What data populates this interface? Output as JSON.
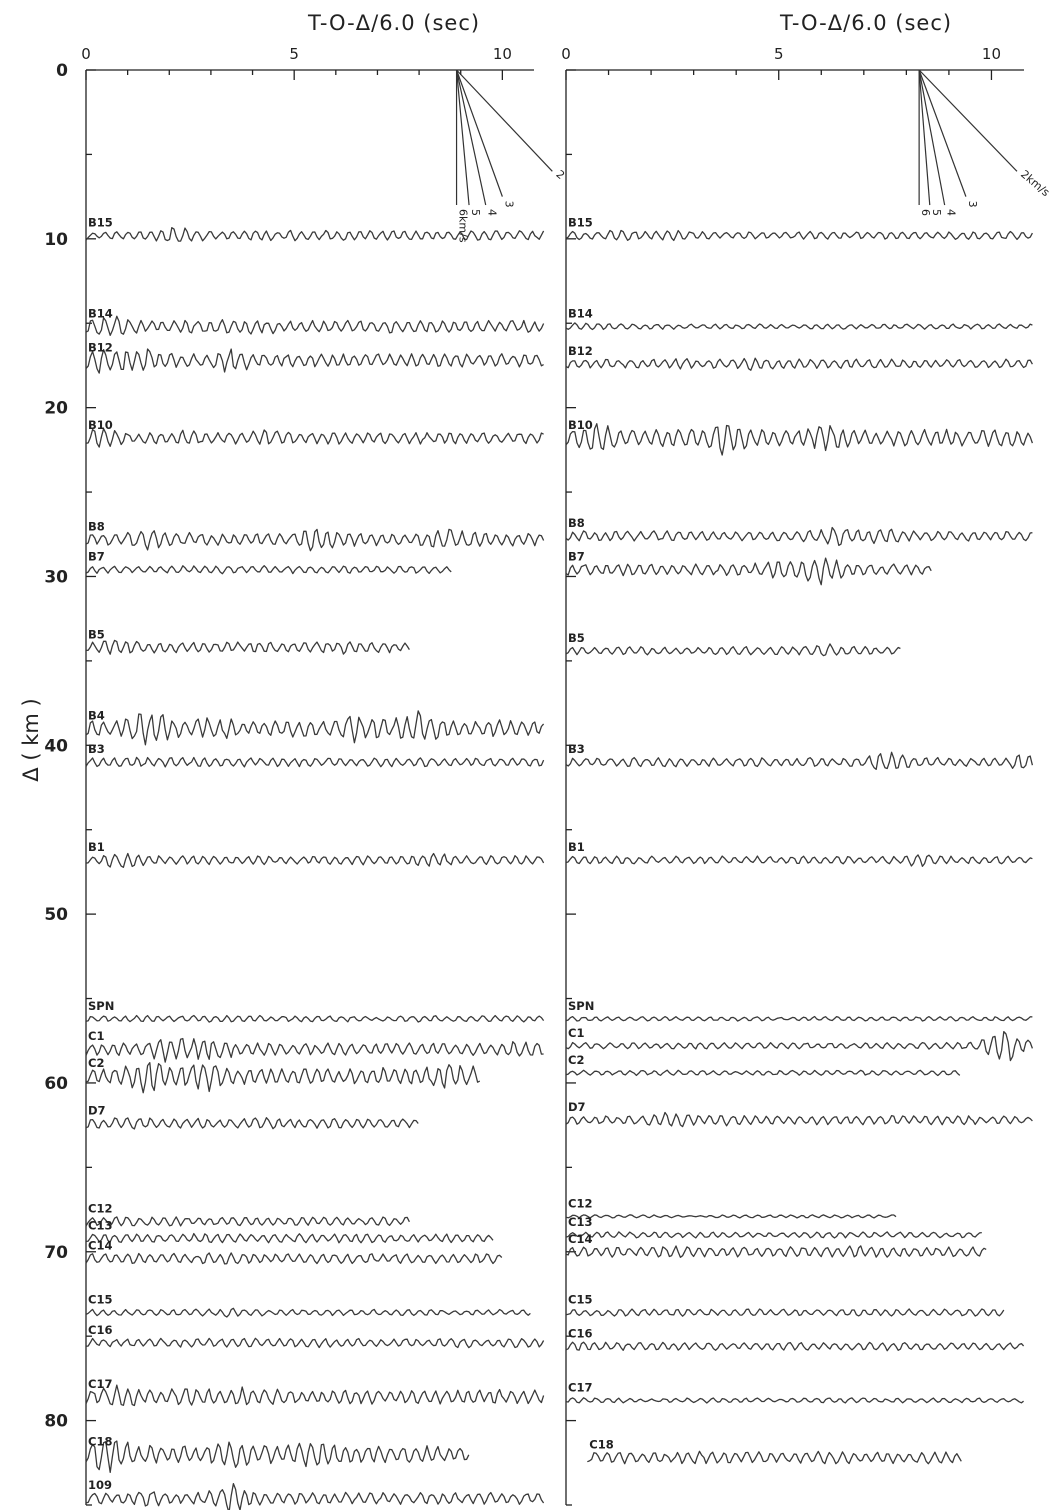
{
  "chart_data": [
    {
      "type": "line",
      "panel": "left",
      "title": "T-O-Δ/6.0 (sec)",
      "ylabel": "Δ ( km )",
      "xlim": [
        0,
        11
      ],
      "ylim": [
        0,
        85
      ],
      "x_ticks": [
        "0",
        "5",
        "10"
      ],
      "y_ticks": [
        "0",
        "10",
        "20",
        "30",
        "40",
        "50",
        "60",
        "70",
        "80"
      ],
      "velocity_lines": {
        "origin": {
          "x": 8.9,
          "y": 0
        },
        "lines": [
          {
            "label": "6km/s",
            "x": 8.9,
            "y": 8
          },
          {
            "label": "5",
            "x": 9.2,
            "y": 8
          },
          {
            "label": "4",
            "x": 9.6,
            "y": 8
          },
          {
            "label": "3",
            "x": 10.0,
            "y": 7.5
          },
          {
            "label": "2",
            "x": 11.2,
            "y": 6
          }
        ]
      },
      "traces": [
        {
          "station": "B15",
          "distance": 9.8,
          "t_start": 0,
          "t_end": 11,
          "amp": 0.8,
          "bursts": [
            [
              0.5,
              0.8
            ],
            [
              2.3,
              1.5
            ],
            [
              3.5,
              0.9
            ]
          ]
        },
        {
          "station": "B14",
          "distance": 15.2,
          "t_start": 0,
          "t_end": 11,
          "amp": 1.0,
          "bursts": [
            [
              0.5,
              1.5
            ],
            [
              3.5,
              1.2
            ],
            [
              5,
              1.1
            ]
          ]
        },
        {
          "station": "B12",
          "distance": 17.2,
          "t_start": 0,
          "t_end": 11,
          "amp": 1.0,
          "bursts": [
            [
              0.5,
              2.0
            ],
            [
              1.5,
              1.6
            ],
            [
              3.5,
              1.6
            ]
          ]
        },
        {
          "station": "B10",
          "distance": 21.8,
          "t_start": 0,
          "t_end": 11,
          "amp": 0.9,
          "bursts": [
            [
              0.3,
              1.6
            ],
            [
              2.3,
              1.2
            ],
            [
              4.5,
              1.3
            ]
          ]
        },
        {
          "station": "B8",
          "distance": 27.8,
          "t_start": 0,
          "t_end": 11,
          "amp": 1.0,
          "bursts": [
            [
              1.5,
              1.5
            ],
            [
              5.5,
              1.6
            ],
            [
              8.8,
              1.4
            ]
          ]
        },
        {
          "station": "B7",
          "distance": 29.6,
          "t_start": 0,
          "t_end": 8.8,
          "amp": 0.6,
          "bursts": [
            [
              1.5,
              0.9
            ],
            [
              5.8,
              1.0
            ]
          ]
        },
        {
          "station": "B5",
          "distance": 34.2,
          "t_start": 0,
          "t_end": 7.8,
          "amp": 0.8,
          "bursts": [
            [
              0.8,
              1.4
            ],
            [
              6.2,
              1.2
            ]
          ]
        },
        {
          "station": "B4",
          "distance": 39.0,
          "t_start": 0,
          "t_end": 11,
          "amp": 1.3,
          "bursts": [
            [
              1.5,
              1.8
            ],
            [
              3,
              1.4
            ],
            [
              6.5,
              1.5
            ],
            [
              8,
              1.7
            ]
          ]
        },
        {
          "station": "B3",
          "distance": 41.0,
          "t_start": 0,
          "t_end": 11,
          "amp": 0.7,
          "bursts": [
            [
              1.5,
              1.1
            ],
            [
              8,
              1.0
            ]
          ]
        },
        {
          "station": "B1",
          "distance": 46.8,
          "t_start": 0,
          "t_end": 11,
          "amp": 0.7,
          "bursts": [
            [
              0.8,
              1.6
            ],
            [
              8.3,
              1.4
            ]
          ]
        },
        {
          "station": "SPN",
          "distance": 56.2,
          "t_start": 0,
          "t_end": 11,
          "amp": 0.5,
          "bursts": [
            [
              3.5,
              1.2
            ],
            [
              7,
              0.8
            ]
          ]
        },
        {
          "station": "C1",
          "distance": 58.0,
          "t_start": 0,
          "t_end": 11,
          "amp": 1.0,
          "bursts": [
            [
              2.0,
              1.8
            ],
            [
              3,
              1.5
            ],
            [
              10.5,
              1.2
            ]
          ]
        },
        {
          "station": "C2",
          "distance": 59.6,
          "t_start": 0,
          "t_end": 9.5,
          "amp": 1.3,
          "bursts": [
            [
              1.5,
              1.8
            ],
            [
              2.8,
              1.6
            ],
            [
              8.8,
              1.4
            ]
          ]
        },
        {
          "station": "D7",
          "distance": 62.4,
          "t_start": 0,
          "t_end": 8.0,
          "amp": 0.8,
          "bursts": [
            [
              1.0,
              1.2
            ],
            [
              4.5,
              1.1
            ]
          ]
        },
        {
          "station": "C12",
          "distance": 68.2,
          "t_start": 0,
          "t_end": 7.8,
          "amp": 0.7,
          "bursts": [
            [
              1,
              1.1
            ],
            [
              6,
              1.0
            ]
          ]
        },
        {
          "station": "C13",
          "distance": 69.2,
          "t_start": 0,
          "t_end": 9.8,
          "amp": 0.7,
          "bursts": [
            [
              1.5,
              1.0
            ],
            [
              5,
              1.0
            ]
          ]
        },
        {
          "station": "C14",
          "distance": 70.4,
          "t_start": 0,
          "t_end": 10.0,
          "amp": 0.8,
          "bursts": [
            [
              3.5,
              1.1
            ],
            [
              6,
              1.0
            ]
          ]
        },
        {
          "station": "C15",
          "distance": 73.6,
          "t_start": 0,
          "t_end": 10.7,
          "amp": 0.5,
          "bursts": [
            [
              3.5,
              1.3
            ],
            [
              9,
              0.8
            ]
          ]
        },
        {
          "station": "C16",
          "distance": 75.4,
          "t_start": 0,
          "t_end": 11,
          "amp": 0.7,
          "bursts": [
            [
              1.8,
              1.0
            ],
            [
              7,
              0.9
            ]
          ]
        },
        {
          "station": "C17",
          "distance": 78.6,
          "t_start": 0,
          "t_end": 11,
          "amp": 1.1,
          "bursts": [
            [
              0.8,
              1.5
            ],
            [
              2.5,
              1.3
            ],
            [
              4,
              1.3
            ]
          ]
        },
        {
          "station": "C18",
          "distance": 82.0,
          "t_start": 0,
          "t_end": 9.2,
          "amp": 1.4,
          "bursts": [
            [
              0.5,
              1.8
            ],
            [
              3.5,
              1.5
            ],
            [
              5.5,
              1.3
            ]
          ]
        },
        {
          "station": "109",
          "distance": 84.6,
          "t_start": 0,
          "t_end": 11,
          "amp": 0.9,
          "bursts": [
            [
              3.5,
              2.0
            ],
            [
              1.5,
              1.3
            ]
          ]
        }
      ]
    },
    {
      "type": "line",
      "panel": "right",
      "title": "T-O-Δ/6.0 (sec)",
      "xlim": [
        0,
        11
      ],
      "ylim": [
        0,
        85
      ],
      "x_ticks": [
        "0",
        "5",
        "10"
      ],
      "velocity_lines": {
        "origin": {
          "x": 8.3,
          "y": 0
        },
        "lines": [
          {
            "label": "6",
            "x": 8.3,
            "y": 8
          },
          {
            "label": "5",
            "x": 8.55,
            "y": 8
          },
          {
            "label": "4",
            "x": 8.9,
            "y": 8
          },
          {
            "label": "3",
            "x": 9.4,
            "y": 7.5
          },
          {
            "label": "2km/s",
            "x": 10.6,
            "y": 6
          }
        ]
      },
      "traces": [
        {
          "station": "B15",
          "distance": 9.8,
          "t_start": 0,
          "t_end": 11,
          "amp": 0.6,
          "bursts": [
            [
              1.2,
              1.3
            ],
            [
              2.5,
              1.2
            ]
          ]
        },
        {
          "station": "B14",
          "distance": 15.2,
          "t_start": 0,
          "t_end": 11,
          "amp": 0.4,
          "bursts": [
            [
              0.5,
              1.6
            ],
            [
              2.5,
              1.0
            ]
          ]
        },
        {
          "station": "B12",
          "distance": 17.4,
          "t_start": 0,
          "t_end": 11,
          "amp": 0.7,
          "bursts": [
            [
              2.5,
              1.2
            ],
            [
              4.5,
              1.3
            ]
          ]
        },
        {
          "station": "B10",
          "distance": 21.8,
          "t_start": 0,
          "t_end": 11,
          "amp": 1.3,
          "bursts": [
            [
              0.8,
              1.6
            ],
            [
              3.8,
              1.8
            ],
            [
              6.2,
              1.5
            ]
          ]
        },
        {
          "station": "B8",
          "distance": 27.6,
          "t_start": 0,
          "t_end": 11,
          "amp": 0.8,
          "bursts": [
            [
              6.3,
              1.7
            ],
            [
              7.5,
              1.4
            ]
          ]
        },
        {
          "station": "B7",
          "distance": 29.6,
          "t_start": 0,
          "t_end": 8.6,
          "amp": 0.9,
          "bursts": [
            [
              6,
              2.0
            ],
            [
              5,
              1.4
            ]
          ]
        },
        {
          "station": "B5",
          "distance": 34.4,
          "t_start": 0,
          "t_end": 7.9,
          "amp": 0.6,
          "bursts": [
            [
              6.2,
              1.5
            ],
            [
              4.5,
              1.1
            ]
          ]
        },
        {
          "station": "B3",
          "distance": 41.0,
          "t_start": 0,
          "t_end": 11,
          "amp": 0.7,
          "bursts": [
            [
              7.5,
              1.8
            ],
            [
              10.8,
              1.6
            ]
          ]
        },
        {
          "station": "B1",
          "distance": 46.8,
          "t_start": 0,
          "t_end": 11,
          "amp": 0.6,
          "bursts": [
            [
              8.2,
              1.5
            ],
            [
              2,
              1.0
            ]
          ]
        },
        {
          "station": "SPN",
          "distance": 56.2,
          "t_start": 0,
          "t_end": 11,
          "amp": 0.35,
          "bursts": [
            [
              5,
              0.8
            ]
          ]
        },
        {
          "station": "C1",
          "distance": 57.8,
          "t_start": 0,
          "t_end": 11,
          "amp": 0.5,
          "bursts": [
            [
              10.3,
              3.5
            ]
          ]
        },
        {
          "station": "C2",
          "distance": 59.4,
          "t_start": 0,
          "t_end": 9.3,
          "amp": 0.4,
          "bursts": [
            [
              4,
              0.8
            ]
          ]
        },
        {
          "station": "D7",
          "distance": 62.2,
          "t_start": 0,
          "t_end": 11,
          "amp": 0.7,
          "bursts": [
            [
              2.5,
              1.6
            ],
            [
              3.5,
              1.2
            ]
          ]
        },
        {
          "station": "C12",
          "distance": 67.9,
          "t_start": 0,
          "t_end": 7.8,
          "amp": 0.25,
          "bursts": [
            [
              3,
              0.6
            ]
          ]
        },
        {
          "station": "C13",
          "distance": 69.0,
          "t_start": 0,
          "t_end": 9.8,
          "amp": 0.45,
          "bursts": [
            [
              5,
              0.9
            ]
          ]
        },
        {
          "station": "C14",
          "distance": 70.0,
          "t_start": 0,
          "t_end": 9.9,
          "amp": 0.8,
          "bursts": [
            [
              2.5,
              1.1
            ],
            [
              7,
              1.1
            ]
          ]
        },
        {
          "station": "C15",
          "distance": 73.6,
          "t_start": 0,
          "t_end": 10.3,
          "amp": 0.55,
          "bursts": [
            [
              0.5,
              1.0
            ],
            [
              9.5,
              1.0
            ]
          ]
        },
        {
          "station": "C16",
          "distance": 75.6,
          "t_start": 0,
          "t_end": 10.8,
          "amp": 0.6,
          "bursts": [
            [
              0.5,
              1.2
            ],
            [
              7.5,
              1.1
            ]
          ]
        },
        {
          "station": "C17",
          "distance": 78.8,
          "t_start": 0,
          "t_end": 10.8,
          "amp": 0.4,
          "bursts": [
            [
              2,
              0.8
            ],
            [
              5,
              0.8
            ]
          ]
        },
        {
          "station": "C18",
          "distance": 82.2,
          "t_start": 0.5,
          "t_end": 9.3,
          "amp": 0.9,
          "bursts": [
            [
              3,
              1.1
            ],
            [
              6,
              1.1
            ]
          ]
        }
      ]
    }
  ]
}
